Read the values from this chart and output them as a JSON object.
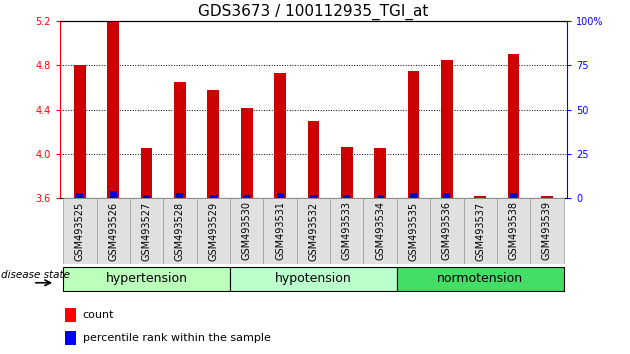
{
  "title": "GDS3673 / 100112935_TGI_at",
  "samples": [
    "GSM493525",
    "GSM493526",
    "GSM493527",
    "GSM493528",
    "GSM493529",
    "GSM493530",
    "GSM493531",
    "GSM493532",
    "GSM493533",
    "GSM493534",
    "GSM493535",
    "GSM493536",
    "GSM493537",
    "GSM493538",
    "GSM493539"
  ],
  "count_values": [
    4.8,
    5.2,
    4.05,
    4.65,
    4.58,
    4.42,
    4.73,
    4.3,
    4.06,
    4.05,
    4.75,
    4.85,
    3.62,
    4.9,
    3.62
  ],
  "percentile_values": [
    3,
    4,
    2,
    3,
    2,
    2,
    3,
    2,
    2,
    2,
    3,
    3,
    0,
    3,
    0
  ],
  "y_min": 3.6,
  "y_max": 5.2,
  "y_ticks": [
    3.6,
    4.0,
    4.4,
    4.8,
    5.2
  ],
  "y_right_ticks": [
    0,
    25,
    50,
    75,
    100
  ],
  "y_right_labels": [
    "0",
    "25",
    "50",
    "75",
    "100%"
  ],
  "groups": [
    {
      "label": "hypertension",
      "start": 0,
      "end": 4,
      "color": "#bbffbb"
    },
    {
      "label": "hypotension",
      "start": 5,
      "end": 9,
      "color": "#bbffcc"
    },
    {
      "label": "normotension",
      "start": 10,
      "end": 14,
      "color": "#44dd66"
    }
  ],
  "bar_color": "#cc0000",
  "percentile_color": "#0000cc",
  "bar_width": 0.35,
  "disease_state_label": "disease state",
  "legend_count_label": "count",
  "legend_percentile_label": "percentile rank within the sample",
  "title_fontsize": 11,
  "tick_fontsize": 7,
  "group_label_fontsize": 9,
  "legend_fontsize": 8
}
